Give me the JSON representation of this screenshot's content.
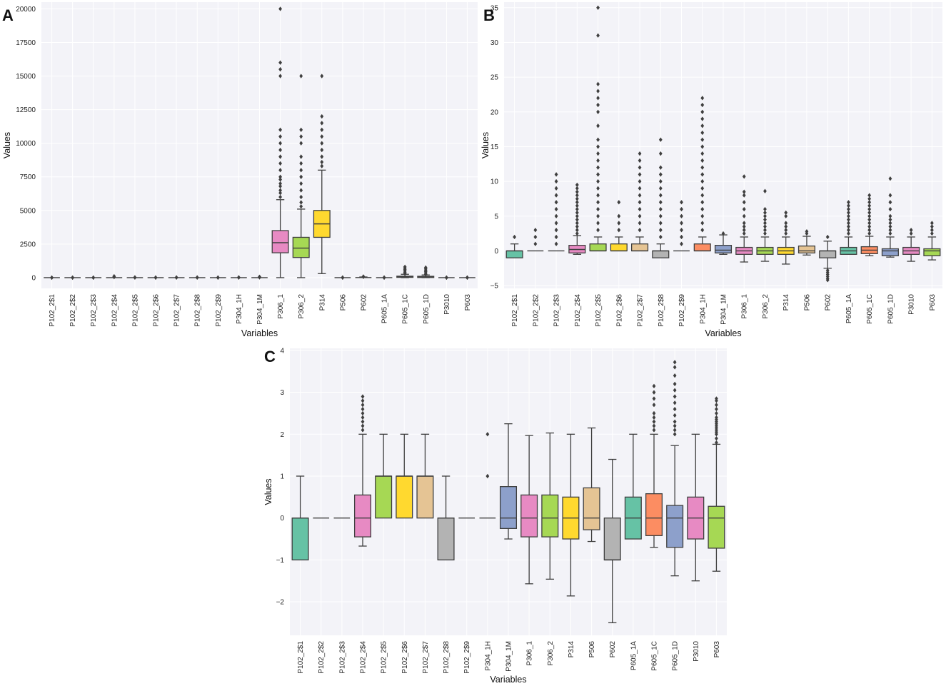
{
  "palette": [
    "#66c2a5",
    "#fc8d62",
    "#8da0cb",
    "#e78ac3",
    "#a6d854",
    "#ffd92f",
    "#e5c494",
    "#b3b3b3"
  ],
  "charts": [
    {
      "panel": "A",
      "type": "box",
      "xlabel": "Variables",
      "ylabel": "Values",
      "ylim": [
        -800,
        20500
      ],
      "yticks": [
        0,
        2500,
        5000,
        7500,
        10000,
        12500,
        15000,
        17500,
        20000
      ],
      "ytick_labels": [
        "0",
        "2500",
        "5000",
        "7500",
        "10000",
        "12500",
        "15000",
        "17500",
        "20000"
      ],
      "categories": [
        "P102_2$1",
        "P102_2$2",
        "P102_2$3",
        "P102_2$4",
        "P102_2$5",
        "P102_2$6",
        "P102_2$7",
        "P102_2$8",
        "P102_2$9",
        "P304_1H",
        "P304_1M",
        "P306_1",
        "P306_2",
        "P314",
        "P506",
        "P602",
        "P605_1A",
        "P605_1C",
        "P605_1D",
        "P3010",
        "P603"
      ],
      "boxes": [
        {
          "q1": 0,
          "median": 0,
          "q3": 0,
          "wlo": 0,
          "whi": 0,
          "outliers": [
            1,
            1
          ]
        },
        {
          "q1": 0,
          "median": 0,
          "q3": 0,
          "wlo": 0,
          "whi": 0,
          "outliers": [
            1,
            2
          ]
        },
        {
          "q1": 0,
          "median": 0,
          "q3": 0,
          "wlo": 0,
          "whi": 0,
          "outliers": [
            1,
            2
          ]
        },
        {
          "q1": 0,
          "median": 0,
          "q3": 0,
          "wlo": 0,
          "whi": 0,
          "outliers": [
            40,
            70,
            100
          ]
        },
        {
          "q1": 0,
          "median": 0,
          "q3": 0,
          "wlo": 0,
          "whi": 0,
          "outliers": [
            5,
            20
          ]
        },
        {
          "q1": 0,
          "median": 0,
          "q3": 0,
          "wlo": 0,
          "whi": 0,
          "outliers": [
            3,
            7
          ]
        },
        {
          "q1": 0,
          "median": 0,
          "q3": 0,
          "wlo": 0,
          "whi": 0,
          "outliers": [
            5,
            14
          ]
        },
        {
          "q1": 0,
          "median": 0,
          "q3": 0,
          "wlo": 0,
          "whi": 0,
          "outliers": [
            5,
            16
          ]
        },
        {
          "q1": 0,
          "median": 0,
          "q3": 0,
          "wlo": 0,
          "whi": 0,
          "outliers": [
            3,
            7
          ]
        },
        {
          "q1": 0,
          "median": 0,
          "q3": 0,
          "wlo": 0,
          "whi": 0,
          "outliers": [
            5,
            22
          ]
        },
        {
          "q1": 0,
          "median": 0,
          "q3": 0,
          "wlo": 0,
          "whi": 0,
          "outliers": [
            20,
            40,
            60
          ]
        },
        {
          "q1": 1850,
          "median": 2600,
          "q3": 3500,
          "wlo": 0,
          "whi": 5800,
          "outliers": [
            6000,
            6300,
            6500,
            6800,
            7000,
            7300,
            7500,
            8000,
            8500,
            9000,
            9500,
            10000,
            10500,
            11000,
            15000,
            15500,
            16000,
            20000
          ]
        },
        {
          "q1": 1500,
          "median": 2200,
          "q3": 3000,
          "wlo": 0,
          "whi": 5100,
          "outliers": [
            5300,
            5600,
            6000,
            6500,
            7000,
            7500,
            8000,
            8500,
            9000,
            10000,
            10500,
            11000,
            15000
          ]
        },
        {
          "q1": 3000,
          "median": 4000,
          "q3": 5000,
          "wlo": 300,
          "whi": 8000,
          "outliers": [
            8300,
            8600,
            9000,
            9500,
            10000,
            10500,
            11000,
            11500,
            12000,
            15000
          ]
        },
        {
          "q1": 0,
          "median": 0,
          "q3": 0,
          "wlo": 0,
          "whi": 0,
          "outliers": [
            3,
            5
          ]
        },
        {
          "q1": 0,
          "median": 5,
          "q3": 20,
          "wlo": 0,
          "whi": 50,
          "outliers": [
            60,
            80
          ]
        },
        {
          "q1": 0,
          "median": 0,
          "q3": 0,
          "wlo": 0,
          "whi": 0,
          "outliers": [
            3,
            7
          ]
        },
        {
          "q1": 20,
          "median": 60,
          "q3": 110,
          "wlo": 0,
          "whi": 250,
          "outliers": [
            300,
            400,
            500,
            600,
            700,
            800
          ]
        },
        {
          "q1": 10,
          "median": 50,
          "q3": 100,
          "wlo": 0,
          "whi": 200,
          "outliers": [
            250,
            350,
            450,
            550,
            650,
            750
          ]
        },
        {
          "q1": 0,
          "median": 0,
          "q3": 0,
          "wlo": 0,
          "whi": 0,
          "outliers": [
            2,
            3
          ]
        },
        {
          "q1": 0,
          "median": 0,
          "q3": 0,
          "wlo": 0,
          "whi": 0,
          "outliers": [
            4,
            6
          ]
        }
      ]
    },
    {
      "panel": "B",
      "type": "box",
      "xlabel": "Variables",
      "ylabel": "Values",
      "ylim": [
        -5.4,
        35.8
      ],
      "yticks": [
        -5,
        0,
        5,
        10,
        15,
        20,
        25,
        30,
        35
      ],
      "ytick_labels": [
        "−5",
        "0",
        "5",
        "10",
        "15",
        "20",
        "25",
        "30",
        "35"
      ],
      "categories": [
        "P102_2$1",
        "P102_2$2",
        "P102_2$3",
        "P102_2$4",
        "P102_2$5",
        "P102_2$6",
        "P102_2$7",
        "P102_2$8",
        "P102_2$9",
        "P304_1H",
        "P304_1M",
        "P306_1",
        "P306_2",
        "P314",
        "P506",
        "P602",
        "P605_1A",
        "P605_1C",
        "P605_1D",
        "P3010",
        "P603"
      ],
      "boxes": [
        {
          "q1": -1,
          "median": 0,
          "q3": 0,
          "wlo": -1,
          "whi": 1,
          "outliers": [
            2
          ]
        },
        {
          "q1": 0,
          "median": 0,
          "q3": 0,
          "wlo": 0,
          "whi": 0,
          "outliers": [
            1,
            2,
            3
          ]
        },
        {
          "q1": 0,
          "median": 0,
          "q3": 0,
          "wlo": 0,
          "whi": 0,
          "outliers": [
            1,
            2,
            3,
            4,
            5,
            6,
            7,
            8,
            9,
            10,
            11
          ]
        },
        {
          "q1": -0.3,
          "median": 0.2,
          "q3": 0.8,
          "wlo": -0.5,
          "whi": 2.2,
          "outliers": [
            2.5,
            3,
            3.5,
            4,
            4.5,
            5,
            5.5,
            6,
            6.5,
            7,
            7.5,
            8,
            8.5,
            9,
            9.5
          ]
        },
        {
          "q1": 0,
          "median": 0,
          "q3": 1,
          "wlo": 0,
          "whi": 2,
          "outliers": [
            3,
            4,
            5,
            6,
            7,
            8,
            9,
            10,
            11,
            12,
            13,
            14,
            15,
            16,
            18,
            20,
            21,
            22,
            23,
            24,
            31,
            35
          ]
        },
        {
          "q1": 0,
          "median": 0,
          "q3": 1,
          "wlo": 0,
          "whi": 2,
          "outliers": [
            3,
            4,
            5,
            7
          ]
        },
        {
          "q1": 0,
          "median": 0,
          "q3": 1,
          "wlo": 0,
          "whi": 2,
          "outliers": [
            3,
            4,
            5,
            6,
            7,
            8,
            9,
            10,
            11,
            12,
            13,
            14
          ]
        },
        {
          "q1": -1,
          "median": 0,
          "q3": 0,
          "wlo": -1,
          "whi": 1,
          "outliers": [
            2,
            3,
            4,
            5,
            6,
            7,
            8,
            9,
            10,
            11,
            12,
            14,
            16
          ]
        },
        {
          "q1": 0,
          "median": 0,
          "q3": 0,
          "wlo": 0,
          "whi": 0,
          "outliers": [
            1,
            2,
            3,
            4,
            5,
            6,
            7
          ]
        },
        {
          "q1": 0,
          "median": 0,
          "q3": 1,
          "wlo": 0,
          "whi": 2,
          "outliers": [
            3,
            4,
            5,
            6,
            7,
            8,
            9,
            10,
            11,
            12,
            13,
            14,
            15,
            16,
            17,
            18,
            19,
            20,
            21,
            22
          ]
        },
        {
          "q1": -0.3,
          "median": 0.1,
          "q3": 0.8,
          "wlo": -0.5,
          "whi": 2.3,
          "outliers": [
            2.5
          ]
        },
        {
          "q1": -0.5,
          "median": 0,
          "q3": 0.5,
          "wlo": -1.6,
          "whi": 2,
          "outliers": [
            2.5,
            3,
            3.5,
            4,
            5,
            6,
            7,
            8,
            8.5,
            10.7
          ]
        },
        {
          "q1": -0.5,
          "median": 0,
          "q3": 0.5,
          "wlo": -1.5,
          "whi": 2,
          "outliers": [
            2.5,
            3,
            3.5,
            4,
            4.5,
            5,
            5.5,
            6,
            8.6
          ]
        },
        {
          "q1": -0.5,
          "median": 0,
          "q3": 0.5,
          "wlo": -1.9,
          "whi": 2,
          "outliers": [
            2.5,
            3,
            3.5,
            4,
            5,
            5.5
          ]
        },
        {
          "q1": -0.3,
          "median": 0,
          "q3": 0.7,
          "wlo": -0.6,
          "whi": 2.1,
          "outliers": [
            2.5,
            2.8
          ]
        },
        {
          "q1": -1,
          "median": 0,
          "q3": 0,
          "wlo": -2.5,
          "whi": 1.4,
          "outliers": [
            2,
            -2.8,
            -3.1,
            -3.4,
            -3.7,
            -4,
            -4.2
          ]
        },
        {
          "q1": -0.5,
          "median": 0,
          "q3": 0.5,
          "wlo": -0.5,
          "whi": 2,
          "outliers": [
            2.5,
            3,
            3.5,
            4,
            4.5,
            5,
            5.5,
            6,
            6.5,
            7
          ]
        },
        {
          "q1": -0.4,
          "median": 0.1,
          "q3": 0.6,
          "wlo": -0.7,
          "whi": 2.1,
          "outliers": [
            2.5,
            3,
            3.5,
            4,
            4.5,
            5,
            5.5,
            6,
            6.5,
            7,
            7.5,
            8
          ]
        },
        {
          "q1": -0.7,
          "median": 0,
          "q3": 0.3,
          "wlo": -0.9,
          "whi": 2,
          "outliers": [
            2.5,
            3,
            3.5,
            4,
            4.5,
            5,
            6,
            7,
            8,
            10.4
          ]
        },
        {
          "q1": -0.5,
          "median": 0,
          "q3": 0.5,
          "wlo": -1.5,
          "whi": 2,
          "outliers": [
            2.5,
            3
          ]
        },
        {
          "q1": -0.7,
          "median": 0,
          "q3": 0.3,
          "wlo": -1.3,
          "whi": 2,
          "outliers": [
            2.5,
            3,
            3.5,
            4
          ]
        }
      ]
    },
    {
      "panel": "C",
      "type": "box",
      "xlabel": "Variables",
      "ylabel": "Values",
      "ylim": [
        -2.8,
        4.05
      ],
      "yticks": [
        -2,
        -1,
        0,
        1,
        2,
        3,
        4
      ],
      "ytick_labels": [
        "−2",
        "−1",
        "0",
        "1",
        "2",
        "3",
        "4"
      ],
      "categories": [
        "P102_2$1",
        "P102_2$2",
        "P102_2$3",
        "P102_2$4",
        "P102_2$5",
        "P102_2$6",
        "P102_2$7",
        "P102_2$8",
        "P102_2$9",
        "P304_1H",
        "P304_1M",
        "P306_1",
        "P306_2",
        "P314",
        "P506",
        "P602",
        "P605_1A",
        "P605_1C",
        "P605_1D",
        "P3010",
        "P603"
      ],
      "boxes": [
        {
          "q1": -1,
          "median": 0,
          "q3": 0,
          "wlo": -1,
          "whi": 1,
          "outliers": []
        },
        {
          "q1": 0,
          "median": 0,
          "q3": 0,
          "wlo": 0,
          "whi": 0,
          "outliers": []
        },
        {
          "q1": 0,
          "median": 0,
          "q3": 0,
          "wlo": 0,
          "whi": 0,
          "outliers": []
        },
        {
          "q1": -0.45,
          "median": 0,
          "q3": 0.55,
          "wlo": -0.67,
          "whi": 2,
          "outliers": [
            2.1,
            2.2,
            2.3,
            2.4,
            2.5,
            2.6,
            2.7,
            2.8,
            2.9
          ]
        },
        {
          "q1": 0,
          "median": 1,
          "q3": 1,
          "wlo": 0,
          "whi": 2,
          "outliers": []
        },
        {
          "q1": 0,
          "median": 1,
          "q3": 1,
          "wlo": 0,
          "whi": 2,
          "outliers": []
        },
        {
          "q1": 0,
          "median": 1,
          "q3": 1,
          "wlo": 0,
          "whi": 2,
          "outliers": []
        },
        {
          "q1": -1,
          "median": 0,
          "q3": 0,
          "wlo": -1,
          "whi": 1,
          "outliers": []
        },
        {
          "q1": 0,
          "median": 0,
          "q3": 0,
          "wlo": 0,
          "whi": 0,
          "outliers": []
        },
        {
          "q1": 0,
          "median": 0,
          "q3": 0,
          "wlo": 0,
          "whi": 0,
          "outliers": [
            1,
            2
          ]
        },
        {
          "q1": -0.25,
          "median": 0,
          "q3": 0.75,
          "wlo": -0.5,
          "whi": 2.25,
          "outliers": []
        },
        {
          "q1": -0.45,
          "median": 0,
          "q3": 0.55,
          "wlo": -1.57,
          "whi": 1.97,
          "outliers": []
        },
        {
          "q1": -0.45,
          "median": 0,
          "q3": 0.55,
          "wlo": -1.46,
          "whi": 2.03,
          "outliers": []
        },
        {
          "q1": -0.5,
          "median": 0,
          "q3": 0.5,
          "wlo": -1.86,
          "whi": 2,
          "outliers": []
        },
        {
          "q1": -0.28,
          "median": 0,
          "q3": 0.72,
          "wlo": -0.56,
          "whi": 2.15,
          "outliers": []
        },
        {
          "q1": -1,
          "median": -1,
          "q3": 0,
          "wlo": -2.5,
          "whi": 1.4,
          "outliers": []
        },
        {
          "q1": -0.5,
          "median": 0,
          "q3": 0.5,
          "wlo": -0.5,
          "whi": 2,
          "outliers": []
        },
        {
          "q1": -0.42,
          "median": 0,
          "q3": 0.58,
          "wlo": -0.7,
          "whi": 2,
          "outliers": [
            2.1,
            2.2,
            2.3,
            2.4,
            2.5,
            2.7,
            2.85,
            3,
            3.15
          ]
        },
        {
          "q1": -0.7,
          "median": 0,
          "q3": 0.3,
          "wlo": -1.38,
          "whi": 1.73,
          "outliers": [
            2,
            2.1,
            2.2,
            2.3,
            2.45,
            2.6,
            2.75,
            2.9,
            3.05,
            3.2,
            3.4,
            3.6,
            3.72
          ]
        },
        {
          "q1": -0.5,
          "median": 0,
          "q3": 0.5,
          "wlo": -1.5,
          "whi": 2,
          "outliers": []
        },
        {
          "q1": -0.72,
          "median": 0,
          "q3": 0.28,
          "wlo": -1.27,
          "whi": 1.76,
          "outliers": [
            1.8,
            1.9,
            2,
            2.05,
            2.1,
            2.15,
            2.2,
            2.25,
            2.3,
            2.35,
            2.4,
            2.5,
            2.6,
            2.7,
            2.8,
            2.85
          ]
        }
      ]
    }
  ]
}
